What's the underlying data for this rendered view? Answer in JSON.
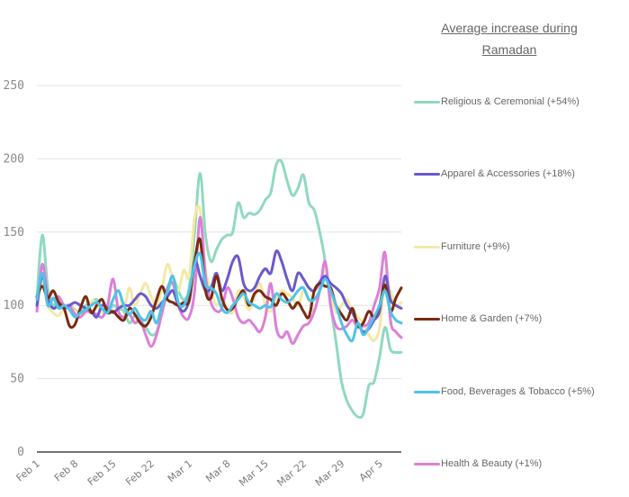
{
  "chart_data": {
    "type": "line",
    "title": "Average increase during Ramadan",
    "xlabel": "",
    "ylabel": "",
    "ylim": [
      0,
      250
    ],
    "yticks": [
      0,
      50,
      100,
      150,
      200,
      250
    ],
    "grid": true,
    "legend_position": "right",
    "x_start": "Feb 1",
    "x_end": "Apr 8",
    "xtick_labels": [
      "Feb 1",
      "Feb 8",
      "Feb 15",
      "Feb 22",
      "Mar 1",
      "Mar 8",
      "Mar 15",
      "Mar 22",
      "Mar 29",
      "Apr 5"
    ],
    "xtick_days": [
      0,
      7,
      14,
      21,
      28,
      35,
      42,
      49,
      56,
      63
    ],
    "series": [
      {
        "name": "Religious & Ceremonial (+54%)",
        "color": "#8fd9bf",
        "values": [
          105,
          148,
          112,
          100,
          104,
          98,
          100,
          97,
          95,
          100,
          102,
          104,
          98,
          95,
          100,
          98,
          96,
          88,
          93,
          90,
          85,
          80,
          82,
          95,
          108,
          118,
          110,
          104,
          112,
          150,
          190,
          148,
          130,
          138,
          145,
          148,
          150,
          170,
          160,
          163,
          162,
          165,
          172,
          177,
          196,
          198,
          185,
          175,
          180,
          189,
          170,
          165,
          150,
          130,
          100,
          75,
          48,
          35,
          28,
          24,
          26,
          45,
          48,
          65,
          85,
          70,
          68,
          68
        ]
      },
      {
        "name": "Apparel & Accessories (+18%)",
        "color": "#6a5acd",
        "values": [
          100,
          120,
          104,
          98,
          100,
          98,
          100,
          102,
          100,
          98,
          96,
          92,
          100,
          98,
          95,
          98,
          100,
          100,
          104,
          108,
          106,
          100,
          98,
          102,
          106,
          110,
          100,
          96,
          104,
          130,
          120,
          110,
          112,
          122,
          110,
          118,
          130,
          133,
          115,
          110,
          112,
          120,
          125,
          122,
          137,
          130,
          118,
          110,
          122,
          118,
          112,
          110,
          116,
          120,
          115,
          112,
          108,
          100,
          95,
          88,
          82,
          84,
          90,
          96,
          120,
          104,
          100,
          98
        ]
      },
      {
        "name": "Furniture (+9%)",
        "color": "#f2e9a6",
        "values": [
          102,
          115,
          100,
          95,
          93,
          98,
          100,
          96,
          94,
          95,
          103,
          101,
          95,
          98,
          104,
          110,
          98,
          112,
          100,
          108,
          115,
          106,
          100,
          112,
          128,
          118,
          110,
          124,
          120,
          160,
          165,
          125,
          110,
          100,
          105,
          98,
          95,
          110,
          106,
          97,
          105,
          115,
          100,
          96,
          105,
          110,
          108,
          105,
          100,
          110,
          105,
          96,
          112,
          125,
          108,
          95,
          100,
          104,
          96,
          92,
          88,
          80,
          76,
          85,
          116,
          110,
          100,
          102
        ]
      },
      {
        "name": "Home & Garden (+7%)",
        "color": "#7a2a10",
        "values": [
          106,
          113,
          105,
          110,
          102,
          98,
          86,
          87,
          98,
          106,
          95,
          100,
          104,
          95,
          96,
          92,
          90,
          98,
          94,
          88,
          86,
          92,
          104,
          113,
          104,
          102,
          100,
          102,
          103,
          130,
          145,
          110,
          105,
          120,
          105,
          97,
          98,
          105,
          110,
          100,
          108,
          110,
          106,
          104,
          100,
          108,
          104,
          98,
          102,
          96,
          92,
          110,
          115,
          113,
          112,
          100,
          94,
          90,
          98,
          86,
          88,
          96,
          92,
          100,
          114,
          96,
          105,
          112
        ]
      },
      {
        "name": "Food, Beverages & Tobacco (+5%)",
        "color": "#4ec3e8",
        "values": [
          104,
          122,
          100,
          105,
          98,
          100,
          97,
          92,
          95,
          97,
          100,
          102,
          98,
          95,
          104,
          110,
          100,
          94,
          98,
          92,
          90,
          96,
          88,
          100,
          110,
          120,
          102,
          100,
          110,
          128,
          135,
          114,
          112,
          108,
          98,
          95,
          100,
          104,
          108,
          102,
          100,
          98,
          100,
          99,
          108,
          104,
          102,
          105,
          110,
          112,
          104,
          104,
          110,
          118,
          110,
          100,
          88,
          80,
          76,
          88,
          80,
          85,
          92,
          100,
          110,
          96,
          90,
          88
        ]
      },
      {
        "name": "Health & Beauty (+1%)",
        "color": "#dc7fd8",
        "values": [
          96,
          128,
          106,
          104,
          106,
          100,
          100,
          94,
          92,
          96,
          95,
          94,
          92,
          100,
          118,
          96,
          92,
          94,
          88,
          90,
          80,
          72,
          80,
          95,
          112,
          115,
          100,
          92,
          92,
          110,
          160,
          120,
          102,
          96,
          98,
          112,
          105,
          92,
          88,
          90,
          86,
          82,
          92,
          115,
          85,
          78,
          82,
          74,
          80,
          86,
          88,
          96,
          110,
          130,
          100,
          86,
          84,
          86,
          90,
          85,
          86,
          88,
          100,
          112,
          136,
          90,
          82,
          78
        ]
      }
    ]
  }
}
